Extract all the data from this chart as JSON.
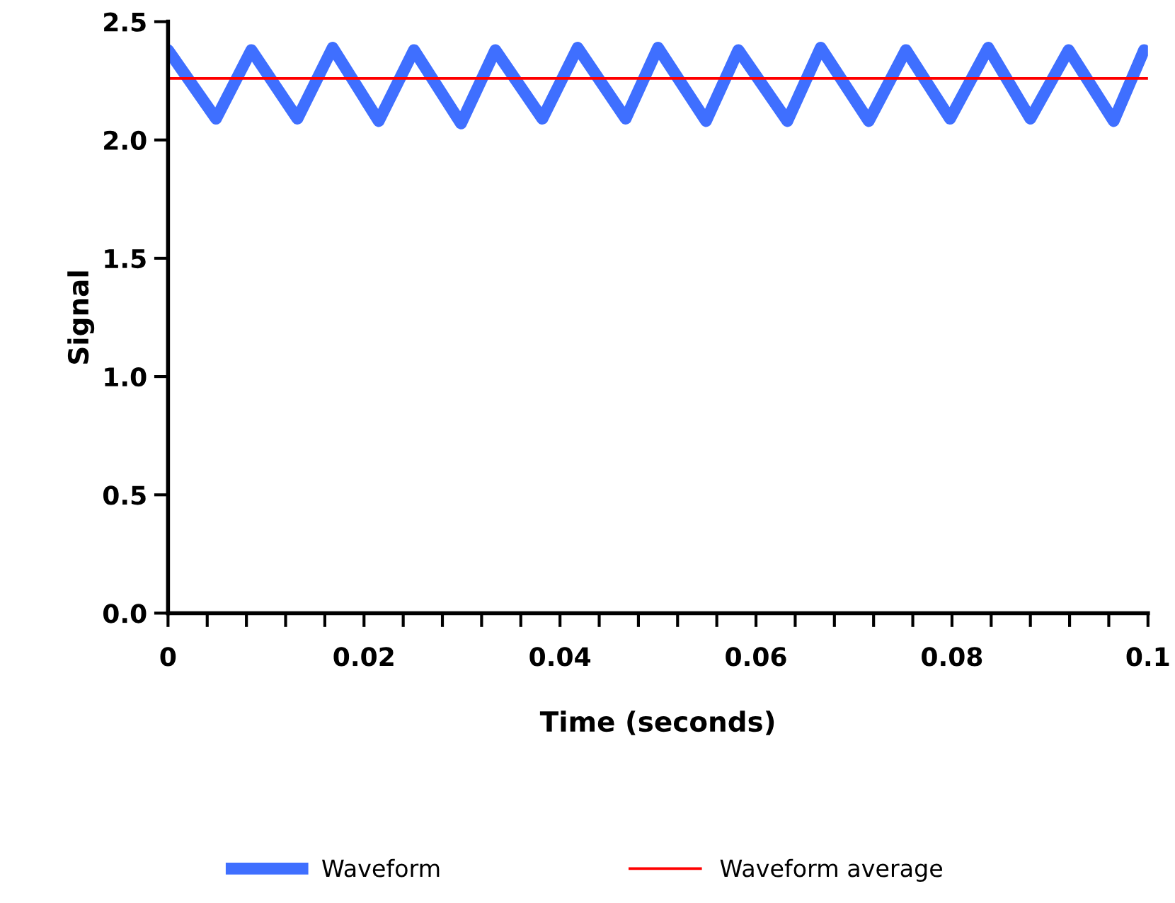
{
  "chart_data": {
    "type": "line",
    "xlabel": "Time (seconds)",
    "ylabel": "Signal",
    "series": [
      {
        "name": "Waveform",
        "color": "#3f6fff",
        "x": [
          0,
          0.0049,
          0.0085,
          0.0132,
          0.0168,
          0.0215,
          0.0251,
          0.0299,
          0.0334,
          0.0382,
          0.0418,
          0.0467,
          0.05,
          0.0549,
          0.0582,
          0.0632,
          0.0666,
          0.0715,
          0.0753,
          0.0798,
          0.0837,
          0.088,
          0.0919,
          0.0965,
          0.0996
        ],
        "values": [
          2.38,
          2.09,
          2.38,
          2.09,
          2.39,
          2.08,
          2.38,
          2.07,
          2.38,
          2.09,
          2.39,
          2.09,
          2.39,
          2.08,
          2.38,
          2.08,
          2.39,
          2.08,
          2.38,
          2.09,
          2.39,
          2.09,
          2.38,
          2.08,
          2.38
        ]
      },
      {
        "name": "Waveform average",
        "color": "#ff0000",
        "x": [
          0,
          0.1
        ],
        "values": [
          2.26,
          2.26
        ]
      }
    ],
    "xlim": [
      0,
      0.1
    ],
    "xticks": [
      {
        "value": 0,
        "label": "0"
      },
      {
        "value": 0.004,
        "label": null
      },
      {
        "value": 0.008,
        "label": null
      },
      {
        "value": 0.012,
        "label": null
      },
      {
        "value": 0.016,
        "label": null
      },
      {
        "value": 0.02,
        "label": "0.02"
      },
      {
        "value": 0.024,
        "label": null
      },
      {
        "value": 0.028,
        "label": null
      },
      {
        "value": 0.032,
        "label": null
      },
      {
        "value": 0.036,
        "label": null
      },
      {
        "value": 0.04,
        "label": "0.04"
      },
      {
        "value": 0.044,
        "label": null
      },
      {
        "value": 0.048,
        "label": null
      },
      {
        "value": 0.052,
        "label": null
      },
      {
        "value": 0.056,
        "label": null
      },
      {
        "value": 0.06,
        "label": "0.06"
      },
      {
        "value": 0.064,
        "label": null
      },
      {
        "value": 0.068,
        "label": null
      },
      {
        "value": 0.072,
        "label": null
      },
      {
        "value": 0.076,
        "label": null
      },
      {
        "value": 0.08,
        "label": "0.08"
      },
      {
        "value": 0.084,
        "label": null
      },
      {
        "value": 0.088,
        "label": null
      },
      {
        "value": 0.092,
        "label": null
      },
      {
        "value": 0.096,
        "label": null
      },
      {
        "value": 0.1,
        "label": "0.1"
      }
    ],
    "ylim": [
      0,
      2.5
    ],
    "yticks": [
      {
        "value": 0,
        "label": "0.0"
      },
      {
        "value": 0.5,
        "label": "0.5"
      },
      {
        "value": 1,
        "label": "1.0"
      },
      {
        "value": 1.5,
        "label": "1.5"
      },
      {
        "value": 2,
        "label": "2.0"
      },
      {
        "value": 2.5,
        "label": "2.5"
      }
    ],
    "grid": false,
    "legend": "bottom",
    "marker": "none",
    "line_style": "solid"
  }
}
